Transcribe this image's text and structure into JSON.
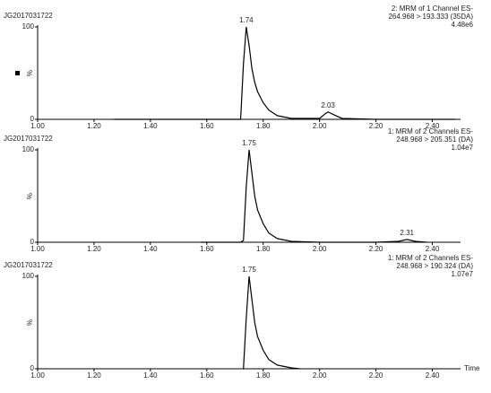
{
  "chart_data": [
    {
      "type": "line",
      "sample": "JG2017031722",
      "annotation": [
        "2: MRM of 1 Channel ES-",
        "264.968 > 193.333 (35DA)",
        "4.48e6"
      ],
      "ylabel": "%",
      "x": [
        1.27,
        1.4,
        1.6,
        1.7,
        1.72,
        1.73,
        1.74,
        1.75,
        1.76,
        1.77,
        1.78,
        1.8,
        1.82,
        1.85,
        1.9,
        2.0,
        2.02,
        2.03,
        2.05,
        2.08,
        2.2,
        2.4,
        2.48
      ],
      "values": [
        0,
        0,
        0,
        0,
        0,
        60,
        100,
        80,
        55,
        40,
        30,
        18,
        10,
        4,
        1,
        1,
        6,
        8,
        5,
        1,
        0,
        0,
        0
      ],
      "peaks": [
        {
          "x": 1.74,
          "y": 100
        },
        {
          "x": 2.03,
          "y": 8
        }
      ],
      "color": "#000000",
      "xlim": [
        1,
        2.5
      ],
      "ylim": [
        0,
        100
      ],
      "xticks": [
        {
          "value": 1,
          "label": "1.00"
        },
        {
          "value": 1.2,
          "label": "1.20"
        },
        {
          "value": 1.4,
          "label": "1.40"
        },
        {
          "value": 1.6,
          "label": "1.60"
        },
        {
          "value": 1.8,
          "label": "1.80"
        },
        {
          "value": 2,
          "label": "2.00"
        },
        {
          "value": 2.2,
          "label": "2.20"
        },
        {
          "value": 2.4,
          "label": "2.40"
        }
      ],
      "yticks": [
        0,
        100
      ]
    },
    {
      "type": "line",
      "sample": "JG2017031722",
      "annotation": [
        "1: MRM of 2 Channels ES-",
        "248.968 > 205.351 (DA)",
        "1.04e7"
      ],
      "ylabel": "%",
      "x": [
        1.58,
        1.65,
        1.72,
        1.73,
        1.74,
        1.75,
        1.76,
        1.77,
        1.78,
        1.8,
        1.82,
        1.85,
        1.9,
        2.0,
        2.2,
        2.28,
        2.31,
        2.34,
        2.38
      ],
      "values": [
        0,
        0,
        0,
        2,
        60,
        100,
        75,
        50,
        35,
        20,
        10,
        4,
        1,
        0,
        0,
        1,
        3,
        1,
        0
      ],
      "peaks": [
        {
          "x": 1.75,
          "y": 100
        },
        {
          "x": 2.31,
          "y": 3
        }
      ],
      "color": "#000000",
      "xlim": [
        1,
        2.5
      ],
      "ylim": [
        0,
        100
      ],
      "xticks": [
        {
          "value": 1,
          "label": "1.00"
        },
        {
          "value": 1.2,
          "label": "1.20"
        },
        {
          "value": 1.4,
          "label": "1.40"
        },
        {
          "value": 1.6,
          "label": "1.60"
        },
        {
          "value": 1.8,
          "label": "1.80"
        },
        {
          "value": 2,
          "label": "2.00"
        },
        {
          "value": 2.2,
          "label": "2.20"
        },
        {
          "value": 2.4,
          "label": "2.40"
        }
      ],
      "yticks": [
        0,
        100
      ]
    },
    {
      "type": "line",
      "sample": "JG2017031722",
      "annotation": [
        "1: MRM of 2 Channels ES-",
        "248.968 > 190.324 (DA)",
        "1.07e7"
      ],
      "ylabel": "%",
      "xlabel": "Time",
      "x": [
        1.73,
        1.74,
        1.75,
        1.76,
        1.77,
        1.78,
        1.8,
        1.82,
        1.85,
        1.9,
        1.93
      ],
      "values": [
        0,
        55,
        100,
        75,
        50,
        35,
        20,
        10,
        4,
        1,
        0
      ],
      "peaks": [
        {
          "x": 1.75,
          "y": 100
        }
      ],
      "color": "#000000",
      "xlim": [
        1,
        2.5
      ],
      "ylim": [
        0,
        100
      ],
      "xticks": [
        {
          "value": 1,
          "label": "1.00"
        },
        {
          "value": 1.2,
          "label": "1.20"
        },
        {
          "value": 1.4,
          "label": "1.40"
        },
        {
          "value": 1.6,
          "label": "1.60"
        },
        {
          "value": 1.8,
          "label": "1.80"
        },
        {
          "value": 2,
          "label": "2.00"
        },
        {
          "value": 2.2,
          "label": "2.20"
        },
        {
          "value": 2.4,
          "label": "2.40"
        }
      ],
      "yticks": [
        0,
        100
      ]
    }
  ]
}
